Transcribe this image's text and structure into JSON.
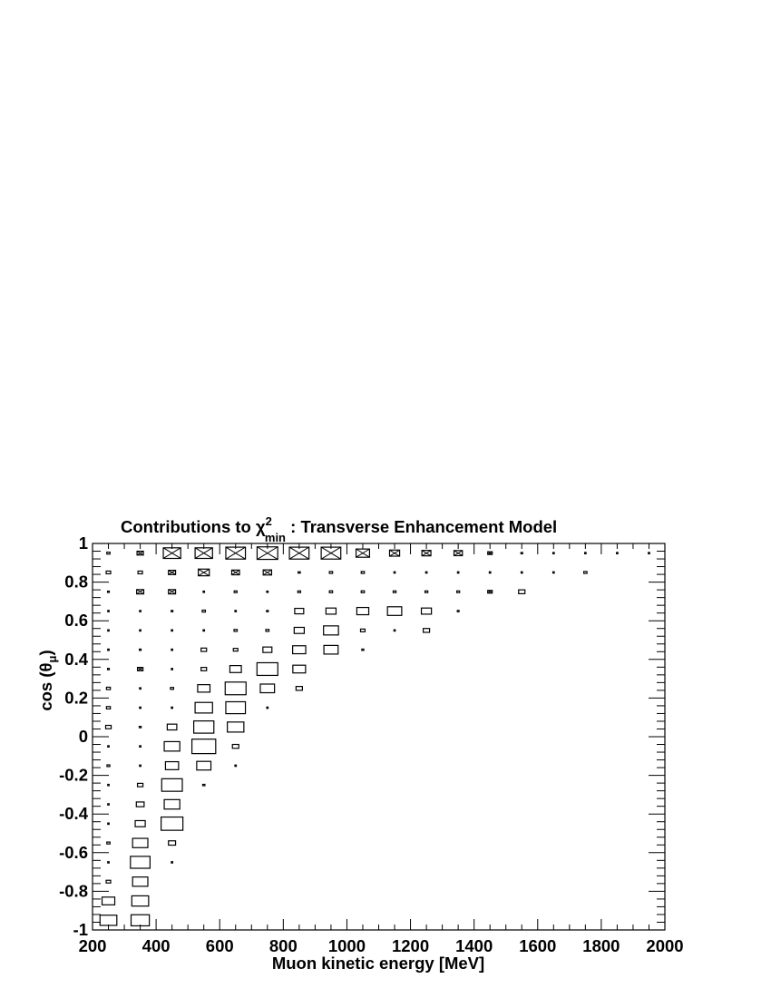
{
  "chart_data": {
    "type": "box",
    "title": "Contributions to χ",
    "title_sup": "2",
    "title_sub": "min",
    "title_rest": " : Transverse Enhancement Model",
    "xlabel": "Muon kinetic energy [MeV]",
    "ylabel_prefix": "cos (θ",
    "ylabel_sub": "μ",
    "ylabel_suffix": ")",
    "xlim": [
      200,
      2000
    ],
    "ylim": [
      -1,
      1
    ],
    "x_ticks": [
      "200",
      "400",
      "600",
      "800",
      "1000",
      "1200",
      "1400",
      "1600",
      "1800",
      "2000"
    ],
    "x_tick_values": [
      200,
      400,
      600,
      800,
      1000,
      1200,
      1400,
      1600,
      1800,
      2000
    ],
    "y_ticks": [
      "-1",
      "-0.8",
      "-0.6",
      "-0.4",
      "-0.2",
      "0",
      "0.2",
      "0.4",
      "0.6",
      "0.8",
      "1"
    ],
    "y_tick_values": [
      -1,
      -0.8,
      -0.6,
      -0.4,
      -0.2,
      0,
      0.2,
      0.4,
      0.6,
      0.8,
      1
    ],
    "bin_width_x": 100,
    "bin_width_y": 0.1,
    "max_value": 1,
    "cells": [
      {
        "x": 250,
        "y": 0.95,
        "v": 0.01
      },
      {
        "x": 350,
        "y": 0.95,
        "v": 0.04,
        "neg": true
      },
      {
        "x": 450,
        "y": 0.95,
        "v": 0.3,
        "neg": true
      },
      {
        "x": 550,
        "y": 0.95,
        "v": 0.3,
        "neg": true
      },
      {
        "x": 650,
        "y": 0.95,
        "v": 0.38,
        "neg": true
      },
      {
        "x": 750,
        "y": 0.95,
        "v": 0.42,
        "neg": true
      },
      {
        "x": 850,
        "y": 0.95,
        "v": 0.38,
        "neg": true
      },
      {
        "x": 950,
        "y": 0.95,
        "v": 0.38,
        "neg": true
      },
      {
        "x": 1050,
        "y": 0.95,
        "v": 0.18,
        "neg": true
      },
      {
        "x": 1150,
        "y": 0.95,
        "v": 0.1,
        "neg": true
      },
      {
        "x": 1250,
        "y": 0.95,
        "v": 0.08,
        "neg": true
      },
      {
        "x": 1350,
        "y": 0.95,
        "v": 0.07,
        "neg": true
      },
      {
        "x": 1450,
        "y": 0.95,
        "v": 0.02,
        "neg": true
      },
      {
        "x": 1550,
        "y": 0.95,
        "v": 0.003
      },
      {
        "x": 1650,
        "y": 0.95,
        "v": 0.001
      },
      {
        "x": 1750,
        "y": 0.95,
        "v": 0.0005
      },
      {
        "x": 1850,
        "y": 0.95,
        "v": 0.0003
      },
      {
        "x": 1950,
        "y": 0.95,
        "v": 0.0003
      },
      {
        "x": 250,
        "y": 0.85,
        "v": 0.02
      },
      {
        "x": 350,
        "y": 0.85,
        "v": 0.02
      },
      {
        "x": 450,
        "y": 0.85,
        "v": 0.05,
        "neg": true
      },
      {
        "x": 550,
        "y": 0.85,
        "v": 0.12,
        "neg": true
      },
      {
        "x": 650,
        "y": 0.85,
        "v": 0.06,
        "neg": true
      },
      {
        "x": 750,
        "y": 0.85,
        "v": 0.07,
        "neg": true
      },
      {
        "x": 850,
        "y": 0.85,
        "v": 0.005
      },
      {
        "x": 950,
        "y": 0.85,
        "v": 0.01
      },
      {
        "x": 1050,
        "y": 0.85,
        "v": 0.01
      },
      {
        "x": 1150,
        "y": 0.85,
        "v": 0.001
      },
      {
        "x": 1250,
        "y": 0.85,
        "v": 0.002
      },
      {
        "x": 1350,
        "y": 0.85,
        "v": 0.001
      },
      {
        "x": 1450,
        "y": 0.85,
        "v": 0.002
      },
      {
        "x": 1550,
        "y": 0.85,
        "v": 0.0005
      },
      {
        "x": 1650,
        "y": 0.85,
        "v": 0.0005
      },
      {
        "x": 1750,
        "y": 0.85,
        "v": 0.01
      },
      {
        "x": 250,
        "y": 0.75,
        "v": 0.003
      },
      {
        "x": 350,
        "y": 0.75,
        "v": 0.05,
        "neg": true
      },
      {
        "x": 450,
        "y": 0.75,
        "v": 0.05,
        "neg": true
      },
      {
        "x": 550,
        "y": 0.75,
        "v": 0.001
      },
      {
        "x": 650,
        "y": 0.75,
        "v": 0.008
      },
      {
        "x": 750,
        "y": 0.75,
        "v": 0.002
      },
      {
        "x": 850,
        "y": 0.75,
        "v": 0.008
      },
      {
        "x": 950,
        "y": 0.75,
        "v": 0.01
      },
      {
        "x": 1050,
        "y": 0.75,
        "v": 0.01
      },
      {
        "x": 1150,
        "y": 0.75,
        "v": 0.008
      },
      {
        "x": 1250,
        "y": 0.75,
        "v": 0.008
      },
      {
        "x": 1350,
        "y": 0.75,
        "v": 0.008
      },
      {
        "x": 1450,
        "y": 0.75,
        "v": 0.02,
        "neg": true
      },
      {
        "x": 1550,
        "y": 0.75,
        "v": 0.04
      },
      {
        "x": 250,
        "y": 0.65,
        "v": 0.001
      },
      {
        "x": 350,
        "y": 0.65,
        "v": 0.001
      },
      {
        "x": 450,
        "y": 0.65,
        "v": 0.003
      },
      {
        "x": 550,
        "y": 0.65,
        "v": 0.01
      },
      {
        "x": 650,
        "y": 0.65,
        "v": 0.001
      },
      {
        "x": 750,
        "y": 0.65,
        "v": 0.003
      },
      {
        "x": 850,
        "y": 0.65,
        "v": 0.08
      },
      {
        "x": 950,
        "y": 0.65,
        "v": 0.1
      },
      {
        "x": 1050,
        "y": 0.65,
        "v": 0.14
      },
      {
        "x": 1150,
        "y": 0.65,
        "v": 0.2
      },
      {
        "x": 1250,
        "y": 0.65,
        "v": 0.1
      },
      {
        "x": 1350,
        "y": 0.65,
        "v": 0.003
      },
      {
        "x": 250,
        "y": 0.55,
        "v": 0.001
      },
      {
        "x": 350,
        "y": 0.55,
        "v": 0.001
      },
      {
        "x": 450,
        "y": 0.55,
        "v": 0.0008
      },
      {
        "x": 550,
        "y": 0.55,
        "v": 0.0008
      },
      {
        "x": 650,
        "y": 0.55,
        "v": 0.01
      },
      {
        "x": 750,
        "y": 0.55,
        "v": 0.01
      },
      {
        "x": 850,
        "y": 0.55,
        "v": 0.1
      },
      {
        "x": 950,
        "y": 0.55,
        "v": 0.22
      },
      {
        "x": 1050,
        "y": 0.55,
        "v": 0.02
      },
      {
        "x": 1150,
        "y": 0.55,
        "v": 0.0008
      },
      {
        "x": 1250,
        "y": 0.55,
        "v": 0.04
      },
      {
        "x": 250,
        "y": 0.45,
        "v": 0.002
      },
      {
        "x": 350,
        "y": 0.45,
        "v": 0.003
      },
      {
        "x": 450,
        "y": 0.45,
        "v": 0.001
      },
      {
        "x": 550,
        "y": 0.45,
        "v": 0.03
      },
      {
        "x": 650,
        "y": 0.45,
        "v": 0.02
      },
      {
        "x": 750,
        "y": 0.45,
        "v": 0.08
      },
      {
        "x": 850,
        "y": 0.45,
        "v": 0.17
      },
      {
        "x": 950,
        "y": 0.45,
        "v": 0.2
      },
      {
        "x": 1050,
        "y": 0.45,
        "v": 0.004
      },
      {
        "x": 250,
        "y": 0.35,
        "v": 0.003
      },
      {
        "x": 350,
        "y": 0.35,
        "v": 0.03,
        "neg": true
      },
      {
        "x": 450,
        "y": 0.35,
        "v": 0.0008
      },
      {
        "x": 550,
        "y": 0.35,
        "v": 0.03
      },
      {
        "x": 650,
        "y": 0.35,
        "v": 0.13
      },
      {
        "x": 750,
        "y": 0.35,
        "v": 0.43
      },
      {
        "x": 850,
        "y": 0.35,
        "v": 0.16
      },
      {
        "x": 250,
        "y": 0.25,
        "v": 0.015
      },
      {
        "x": 350,
        "y": 0.25,
        "v": 0.001
      },
      {
        "x": 450,
        "y": 0.25,
        "v": 0.01
      },
      {
        "x": 550,
        "y": 0.25,
        "v": 0.15
      },
      {
        "x": 650,
        "y": 0.25,
        "v": 0.43
      },
      {
        "x": 750,
        "y": 0.25,
        "v": 0.2
      },
      {
        "x": 850,
        "y": 0.25,
        "v": 0.04
      },
      {
        "x": 250,
        "y": 0.15,
        "v": 0.015
      },
      {
        "x": 350,
        "y": 0.15,
        "v": 0.002
      },
      {
        "x": 450,
        "y": 0.15,
        "v": 0.001
      },
      {
        "x": 550,
        "y": 0.15,
        "v": 0.3
      },
      {
        "x": 650,
        "y": 0.15,
        "v": 0.38
      },
      {
        "x": 750,
        "y": 0.15,
        "v": 0.0005
      },
      {
        "x": 250,
        "y": 0.05,
        "v": 0.03
      },
      {
        "x": 350,
        "y": 0.05,
        "v": 0.004
      },
      {
        "x": 450,
        "y": 0.05,
        "v": 0.09
      },
      {
        "x": 550,
        "y": 0.05,
        "v": 0.4
      },
      {
        "x": 650,
        "y": 0.05,
        "v": 0.27
      },
      {
        "x": 250,
        "y": -0.05,
        "v": 0.0008
      },
      {
        "x": 350,
        "y": -0.05,
        "v": 0.001
      },
      {
        "x": 450,
        "y": -0.05,
        "v": 0.24
      },
      {
        "x": 550,
        "y": -0.05,
        "v": 0.56
      },
      {
        "x": 650,
        "y": -0.05,
        "v": 0.04
      },
      {
        "x": 250,
        "y": -0.15,
        "v": 0.008
      },
      {
        "x": 350,
        "y": -0.15,
        "v": 0.002
      },
      {
        "x": 450,
        "y": -0.15,
        "v": 0.17
      },
      {
        "x": 550,
        "y": -0.15,
        "v": 0.2
      },
      {
        "x": 650,
        "y": -0.15,
        "v": 0.001
      },
      {
        "x": 250,
        "y": -0.25,
        "v": 0.0008
      },
      {
        "x": 350,
        "y": -0.25,
        "v": 0.03
      },
      {
        "x": 450,
        "y": -0.25,
        "v": 0.42
      },
      {
        "x": 550,
        "y": -0.25,
        "v": 0.005
      },
      {
        "x": 250,
        "y": -0.35,
        "v": 0.0006
      },
      {
        "x": 350,
        "y": -0.35,
        "v": 0.06
      },
      {
        "x": 450,
        "y": -0.35,
        "v": 0.24
      },
      {
        "x": 250,
        "y": -0.45,
        "v": 0.0006
      },
      {
        "x": 350,
        "y": -0.45,
        "v": 0.1
      },
      {
        "x": 450,
        "y": -0.45,
        "v": 0.47
      },
      {
        "x": 250,
        "y": -0.55,
        "v": 0.01
      },
      {
        "x": 350,
        "y": -0.55,
        "v": 0.23
      },
      {
        "x": 450,
        "y": -0.55,
        "v": 0.05
      },
      {
        "x": 250,
        "y": -0.65,
        "v": 0.0005
      },
      {
        "x": 350,
        "y": -0.65,
        "v": 0.38
      },
      {
        "x": 450,
        "y": -0.65,
        "v": 0.0005
      },
      {
        "x": 250,
        "y": -0.75,
        "v": 0.02
      },
      {
        "x": 350,
        "y": -0.75,
        "v": 0.23
      },
      {
        "x": 250,
        "y": -0.85,
        "v": 0.16
      },
      {
        "x": 350,
        "y": -0.85,
        "v": 0.28
      },
      {
        "x": 250,
        "y": -0.95,
        "v": 0.28
      },
      {
        "x": 350,
        "y": -0.95,
        "v": 0.33
      }
    ]
  }
}
